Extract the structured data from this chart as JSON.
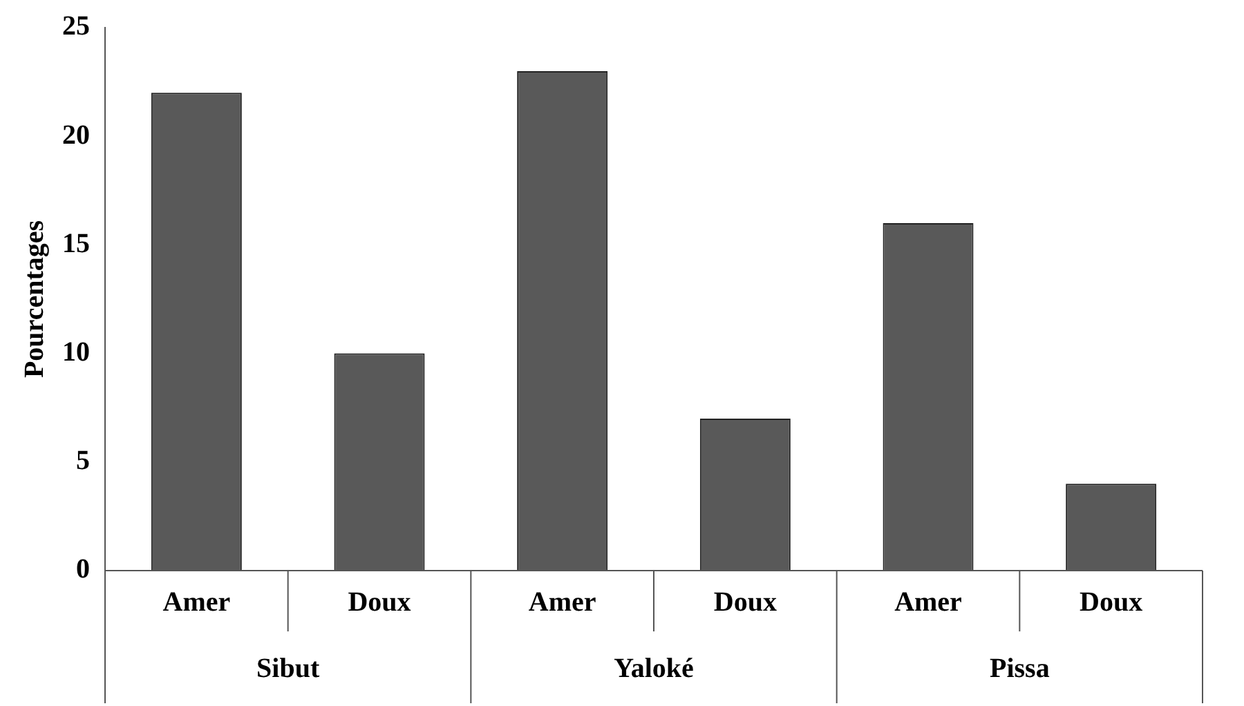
{
  "chart_data": {
    "type": "bar",
    "ylabel": "Pourcentages",
    "categories": [
      "Amer",
      "Doux",
      "Amer",
      "Doux",
      "Amer",
      "Doux"
    ],
    "values": [
      22,
      10,
      23,
      7,
      16,
      4
    ],
    "color": "#595959",
    "ylim": [
      0,
      25
    ],
    "yticks": [
      0,
      5,
      10,
      15,
      20,
      25
    ],
    "grid": false,
    "legend": false,
    "annotations": [
      "Sibut",
      "Yaloké",
      "Pissa"
    ]
  }
}
